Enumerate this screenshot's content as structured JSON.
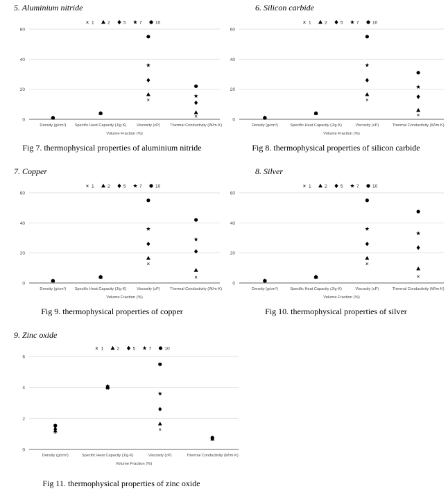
{
  "chart_data": [
    {
      "type": "scatter",
      "heading": "5. Aluminium nitride",
      "caption": "Fig 7. thermophysical properties of aluminium nitride",
      "categories": [
        "Density (g/cm³)",
        "Specific Heat Capacity (J/g·K)",
        "Viscosity (cP)",
        "Thermal Conductivity (W/m·K)"
      ],
      "xlabel": "Volume Fraction (%)",
      "ylim": [
        0,
        60
      ],
      "yticks": [
        0,
        20,
        40,
        60
      ],
      "legend_position": "top",
      "series": [
        {
          "name": "1",
          "marker": "x",
          "values": [
            1,
            4,
            13,
            2
          ]
        },
        {
          "name": "2",
          "marker": "triangle",
          "values": [
            1,
            4,
            16.5,
            4.5
          ]
        },
        {
          "name": "5",
          "marker": "diamond",
          "values": [
            1,
            4,
            26,
            11
          ]
        },
        {
          "name": "7",
          "marker": "star",
          "values": [
            1,
            4,
            36,
            15.5
          ]
        },
        {
          "name": "10",
          "marker": "circle",
          "values": [
            1,
            4,
            55,
            22
          ]
        }
      ]
    },
    {
      "type": "scatter",
      "heading": "6. Silicon carbide",
      "caption": "Fig 8. thermophysical properties of silicon carbide",
      "categories": [
        "Density (g/cm³)",
        "Specific Heat Capacity (J/g·K)",
        "Viscosity (cP)",
        "Thermal Conductivity (W/m·K)"
      ],
      "xlabel": "Volume Fraction (%)",
      "ylim": [
        0,
        60
      ],
      "yticks": [
        0,
        20,
        40,
        60
      ],
      "legend_position": "top",
      "series": [
        {
          "name": "1",
          "marker": "x",
          "values": [
            1,
            4,
            13,
            3
          ]
        },
        {
          "name": "2",
          "marker": "triangle",
          "values": [
            1,
            4,
            16.5,
            6
          ]
        },
        {
          "name": "5",
          "marker": "diamond",
          "values": [
            1,
            4,
            26,
            15
          ]
        },
        {
          "name": "7",
          "marker": "star",
          "values": [
            1,
            4,
            36,
            21.5
          ]
        },
        {
          "name": "10",
          "marker": "circle",
          "values": [
            1,
            4,
            55,
            31
          ]
        }
      ]
    },
    {
      "type": "scatter",
      "heading": "7. Copper",
      "caption": "Fig 9. thermophysical properties of copper",
      "categories": [
        "Density (g/cm³)",
        "Specific Heat Capacity (J/g·K)",
        "Viscosity (cP)",
        "Thermal Conductivity (W/m·K)"
      ],
      "xlabel": "Volume Fraction (%)",
      "ylim": [
        0,
        60
      ],
      "yticks": [
        0,
        20,
        40,
        60
      ],
      "legend_position": "top",
      "series": [
        {
          "name": "1",
          "marker": "x",
          "values": [
            1.5,
            4,
            13,
            4
          ]
        },
        {
          "name": "2",
          "marker": "triangle",
          "values": [
            1.5,
            4,
            16.5,
            8.5
          ]
        },
        {
          "name": "5",
          "marker": "diamond",
          "values": [
            1.5,
            4,
            26,
            21
          ]
        },
        {
          "name": "7",
          "marker": "star",
          "values": [
            1.5,
            4,
            36,
            29
          ]
        },
        {
          "name": "10",
          "marker": "circle",
          "values": [
            1.5,
            4,
            55,
            42
          ]
        }
      ]
    },
    {
      "type": "scatter",
      "heading": "8. Silver",
      "caption": "Fig 10. thermophysical properties of silver",
      "categories": [
        "Density (g/cm³)",
        "Specific Heat Capacity (J/g·K)",
        "Viscosity (cP)",
        "Thermal Conductivity (W/m·K)"
      ],
      "xlabel": "Volume Fraction (%)",
      "ylim": [
        0,
        60
      ],
      "yticks": [
        0,
        20,
        40,
        60
      ],
      "legend_position": "top",
      "series": [
        {
          "name": "1",
          "marker": "x",
          "values": [
            1.5,
            4,
            13,
            4.5
          ]
        },
        {
          "name": "2",
          "marker": "triangle",
          "values": [
            1.5,
            4,
            16.5,
            9.5
          ]
        },
        {
          "name": "5",
          "marker": "diamond",
          "values": [
            1.5,
            4,
            26,
            23.5
          ]
        },
        {
          "name": "7",
          "marker": "star",
          "values": [
            1.5,
            4,
            36,
            33
          ]
        },
        {
          "name": "10",
          "marker": "circle",
          "values": [
            1.5,
            4,
            55,
            47.5
          ]
        }
      ]
    },
    {
      "type": "scatter",
      "heading": "9. Zinc oxide",
      "caption": "Fig 11. thermophysical properties of zinc oxide",
      "categories": [
        "Density (g/cm³)",
        "Specific Heat Capacity (J/g·K)",
        "Viscosity (cP)",
        "Thermal Conductivity (W/m·K)"
      ],
      "xlabel": "Volume Fraction (%)",
      "ylim": [
        0,
        6
      ],
      "yticks": [
        0,
        2,
        4,
        6
      ],
      "legend_position": "top",
      "series": [
        {
          "name": "1",
          "marker": "x",
          "values": [
            1.1,
            3.95,
            1.3,
            0.66
          ]
        },
        {
          "name": "2",
          "marker": "triangle",
          "values": [
            1.2,
            4.0,
            1.65,
            0.68
          ]
        },
        {
          "name": "5",
          "marker": "diamond",
          "values": [
            1.3,
            4.05,
            2.6,
            0.7
          ]
        },
        {
          "name": "7",
          "marker": "star",
          "values": [
            1.45,
            4.1,
            3.6,
            0.73
          ]
        },
        {
          "name": "10",
          "marker": "circle",
          "values": [
            1.55,
            4.0,
            5.5,
            0.76
          ]
        }
      ]
    }
  ]
}
